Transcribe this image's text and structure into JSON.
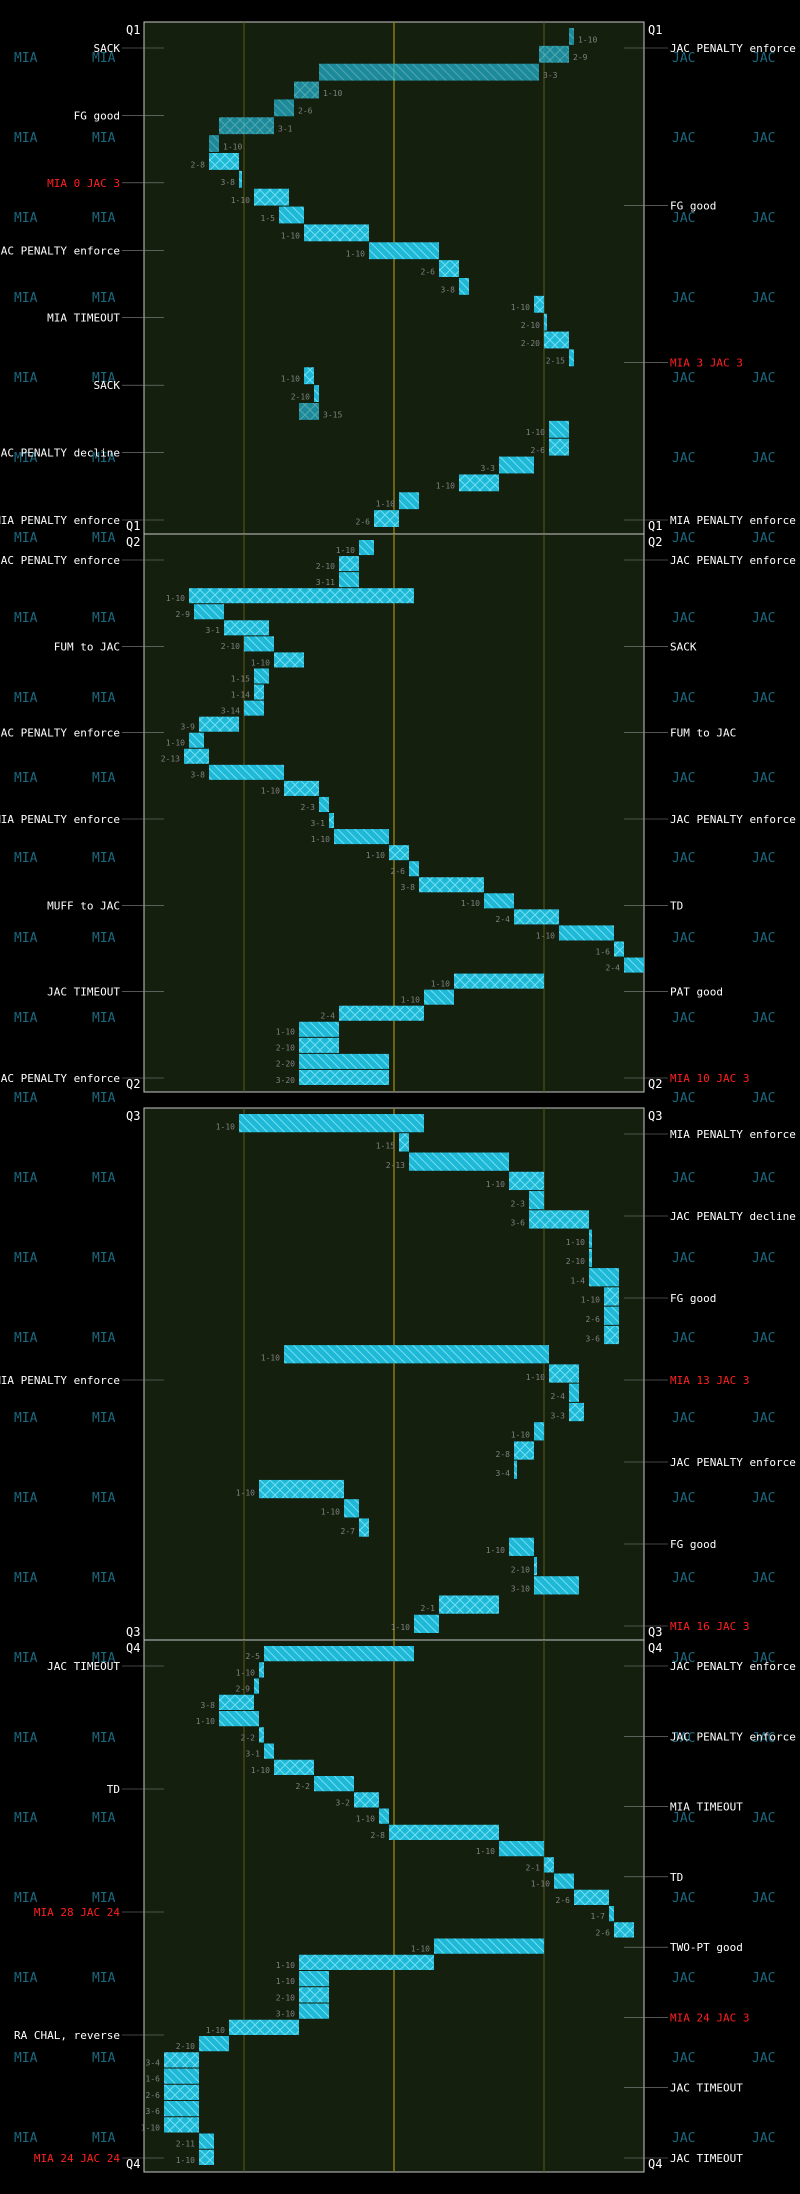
{
  "teams": {
    "left": "MIA",
    "right": "JAC"
  },
  "colors": {
    "background": "#000000",
    "field": "#141f0e",
    "drive": "#1fb8d6",
    "drive_light": "#5fd8ef",
    "endzone_line": "#c8c8c8",
    "midfield": "#8a7a10",
    "score_text": "#ff2020",
    "note_text": "#ffffff",
    "team_watermark": "#1a6a80"
  },
  "chart_data": {
    "type": "drive-chart",
    "title": "",
    "x_axis": "yard line (MIA goal = 0, JAC goal = 100)",
    "xlim": [
      0,
      100
    ],
    "grid_yards": [
      20,
      50,
      80
    ],
    "quarters": [
      {
        "label": "Q1",
        "plays": [
          {
            "down": "1-10",
            "from": 86,
            "to": 85
          },
          {
            "down": "2-9",
            "from": 85,
            "to": 79
          },
          {
            "down": "3-3",
            "from": 79,
            "to": 35
          },
          {
            "down": "1-10",
            "from": 35,
            "to": 30
          },
          {
            "down": "2-6",
            "from": 30,
            "to": 26
          },
          {
            "down": "3-1",
            "from": 26,
            "to": 15
          },
          {
            "down": "1-10",
            "from": 15,
            "to": 13
          },
          {
            "down": "2-8",
            "from": 13,
            "to": 19
          },
          {
            "down": "3-8",
            "from": 19,
            "to": 19
          },
          {
            "down": "1-10",
            "from": 22,
            "to": 29
          },
          {
            "down": "1-5",
            "from": 27,
            "to": 32
          },
          {
            "down": "1-10",
            "from": 32,
            "to": 45
          },
          {
            "down": "1-10",
            "from": 45,
            "to": 59
          },
          {
            "down": "2-6",
            "from": 59,
            "to": 63
          },
          {
            "down": "3-8",
            "from": 63,
            "to": 65
          },
          {
            "down": "1-10",
            "from": 78,
            "to": 80
          },
          {
            "down": "2-10",
            "from": 80,
            "to": 80
          },
          {
            "down": "2-20",
            "from": 80,
            "to": 85
          },
          {
            "down": "2-15",
            "from": 85,
            "to": 86
          },
          {
            "down": "1-10",
            "from": 32,
            "to": 34
          },
          {
            "down": "2-10",
            "from": 34,
            "to": 35
          },
          {
            "down": "3-15",
            "from": 35,
            "to": 31
          },
          {
            "down": "1-10",
            "from": 81,
            "to": 85
          },
          {
            "down": "2-6",
            "from": 81,
            "to": 85
          },
          {
            "down": "3-3",
            "from": 71,
            "to": 78
          },
          {
            "down": "1-10",
            "from": 63,
            "to": 71
          },
          {
            "down": "1-10",
            "from": 51,
            "to": 55
          },
          {
            "down": "2-6",
            "from": 46,
            "to": 51
          }
        ]
      },
      {
        "label": "Q2",
        "plays": [
          {
            "down": "1-10",
            "from": 43,
            "to": 46
          },
          {
            "down": "2-10",
            "from": 39,
            "to": 43
          },
          {
            "down": "3-11",
            "from": 39,
            "to": 43
          },
          {
            "down": "1-10",
            "from": 9,
            "to": 54
          },
          {
            "down": "2-9",
            "from": 10,
            "to": 16
          },
          {
            "down": "3-1",
            "from": 16,
            "to": 25
          },
          {
            "down": "2-10",
            "from": 20,
            "to": 26
          },
          {
            "down": "1-10",
            "from": 26,
            "to": 32
          },
          {
            "down": "1-15",
            "from": 22,
            "to": 25
          },
          {
            "down": "1-14",
            "from": 22,
            "to": 24
          },
          {
            "down": "3-14",
            "from": 20,
            "to": 24
          },
          {
            "down": "3-9",
            "from": 11,
            "to": 19
          },
          {
            "down": "1-10",
            "from": 9,
            "to": 12
          },
          {
            "down": "2-13",
            "from": 8,
            "to": 13
          },
          {
            "down": "3-8",
            "from": 13,
            "to": 28
          },
          {
            "down": "1-10",
            "from": 28,
            "to": 35
          },
          {
            "down": "2-3",
            "from": 35,
            "to": 37
          },
          {
            "down": "3-1",
            "from": 37,
            "to": 38
          },
          {
            "down": "1-10",
            "from": 38,
            "to": 49
          },
          {
            "down": "1-10",
            "from": 49,
            "to": 53
          },
          {
            "down": "2-6",
            "from": 53,
            "to": 55
          },
          {
            "down": "3-8",
            "from": 55,
            "to": 68
          },
          {
            "down": "1-10",
            "from": 68,
            "to": 74
          },
          {
            "down": "2-4",
            "from": 74,
            "to": 83
          },
          {
            "down": "1-10",
            "from": 83,
            "to": 94
          },
          {
            "down": "1-6",
            "from": 94,
            "to": 96
          },
          {
            "down": "2-4",
            "from": 96,
            "to": 100
          },
          {
            "down": "1-10",
            "from": 62,
            "to": 80
          },
          {
            "down": "1-10",
            "from": 56,
            "to": 62
          },
          {
            "down": "2-4",
            "from": 39,
            "to": 56
          },
          {
            "down": "1-10",
            "from": 31,
            "to": 39
          },
          {
            "down": "2-10",
            "from": 31,
            "to": 39
          },
          {
            "down": "2-20",
            "from": 31,
            "to": 49
          },
          {
            "down": "3-20",
            "from": 31,
            "to": 49
          }
        ]
      },
      {
        "label": "Q3",
        "plays": [
          {
            "down": "1-10",
            "from": 19,
            "to": 56
          },
          {
            "down": "1-15",
            "from": 51,
            "to": 53
          },
          {
            "down": "2-13",
            "from": 53,
            "to": 73
          },
          {
            "down": "1-10",
            "from": 73,
            "to": 80
          },
          {
            "down": "2-3",
            "from": 77,
            "to": 80
          },
          {
            "down": "3-6",
            "from": 77,
            "to": 89
          },
          {
            "down": "1-10",
            "from": 89,
            "to": 89
          },
          {
            "down": "2-10",
            "from": 89,
            "to": 89
          },
          {
            "down": "1-4",
            "from": 89,
            "to": 95
          },
          {
            "down": "1-10",
            "from": 92,
            "to": 95
          },
          {
            "down": "2-6",
            "from": 92,
            "to": 95
          },
          {
            "down": "3-6",
            "from": 92,
            "to": 95
          },
          {
            "down": "1-10",
            "from": 28,
            "to": 81
          },
          {
            "down": "1-10",
            "from": 81,
            "to": 87
          },
          {
            "down": "2-4",
            "from": 85,
            "to": 87
          },
          {
            "down": "3-3",
            "from": 85,
            "to": 88
          },
          {
            "down": "1-10",
            "from": 78,
            "to": 80
          },
          {
            "down": "2-8",
            "from": 74,
            "to": 78
          },
          {
            "down": "3-4",
            "from": 74,
            "to": 74
          },
          {
            "down": "1-10",
            "from": 23,
            "to": 40
          },
          {
            "down": "1-10",
            "from": 40,
            "to": 43
          },
          {
            "down": "2-7",
            "from": 43,
            "to": 45
          },
          {
            "down": "1-10",
            "from": 73,
            "to": 78
          },
          {
            "down": "2-10",
            "from": 78,
            "to": 78
          },
          {
            "down": "3-10",
            "from": 78,
            "to": 87
          },
          {
            "down": "2-1",
            "from": 59,
            "to": 71
          },
          {
            "down": "1-10",
            "from": 54,
            "to": 59
          }
        ]
      },
      {
        "label": "Q4",
        "plays": [
          {
            "down": "2-5",
            "from": 24,
            "to": 54
          },
          {
            "down": "1-10",
            "from": 23,
            "to": 24
          },
          {
            "down": "2-9",
            "from": 22,
            "to": 23
          },
          {
            "down": "3-8",
            "from": 15,
            "to": 22
          },
          {
            "down": "1-10",
            "from": 15,
            "to": 23
          },
          {
            "down": "2-2",
            "from": 23,
            "to": 24
          },
          {
            "down": "3-1",
            "from": 24,
            "to": 26
          },
          {
            "down": "1-10",
            "from": 26,
            "to": 34
          },
          {
            "down": "2-2",
            "from": 34,
            "to": 42
          },
          {
            "down": "3-2",
            "from": 42,
            "to": 47
          },
          {
            "down": "1-10",
            "from": 47,
            "to": 49
          },
          {
            "down": "2-8",
            "from": 49,
            "to": 71
          },
          {
            "down": "1-10",
            "from": 71,
            "to": 80
          },
          {
            "down": "2-1",
            "from": 80,
            "to": 82
          },
          {
            "down": "1-10",
            "from": 82,
            "to": 86
          },
          {
            "down": "2-6",
            "from": 86,
            "to": 93
          },
          {
            "down": "1-7",
            "from": 93,
            "to": 94
          },
          {
            "down": "2-6",
            "from": 94,
            "to": 98
          },
          {
            "down": "1-10",
            "from": 58,
            "to": 80
          },
          {
            "down": "1-10",
            "from": 31,
            "to": 58
          },
          {
            "down": "1-10",
            "from": 31,
            "to": 37
          },
          {
            "down": "2-10",
            "from": 31,
            "to": 37
          },
          {
            "down": "3-10",
            "from": 31,
            "to": 37
          },
          {
            "down": "1-10",
            "from": 17,
            "to": 31
          },
          {
            "down": "2-10",
            "from": 11,
            "to": 17
          },
          {
            "down": "3-4",
            "from": 4,
            "to": 11
          },
          {
            "down": "1-6",
            "from": 4,
            "to": 11
          },
          {
            "down": "2-6",
            "from": 4,
            "to": 11
          },
          {
            "down": "3-6",
            "from": 4,
            "to": 11
          },
          {
            "down": "1-10",
            "from": 4,
            "to": 11
          },
          {
            "down": "2-11",
            "from": 11,
            "to": 14
          },
          {
            "down": "1-10",
            "from": 11,
            "to": 14
          }
        ]
      }
    ],
    "annotations": {
      "left": [
        {
          "text": "SACK",
          "quarter": 1
        },
        {
          "text": "FG good",
          "quarter": 1
        },
        {
          "text": "MIA 0 JAC 3",
          "quarter": 1,
          "score": true
        },
        {
          "text": "JAC PENALTY enforce",
          "quarter": 1
        },
        {
          "text": "MIA TIMEOUT",
          "quarter": 1
        },
        {
          "text": "SACK",
          "quarter": 1
        },
        {
          "text": "JAC PENALTY decline",
          "quarter": 1
        },
        {
          "text": "MIA PENALTY enforce",
          "quarter": 1
        },
        {
          "text": "JAC PENALTY enforce",
          "quarter": 2
        },
        {
          "text": "FUM to JAC",
          "quarter": 2
        },
        {
          "text": "JAC PENALTY enforce",
          "quarter": 2
        },
        {
          "text": "MIA PENALTY enforce",
          "quarter": 2
        },
        {
          "text": "MUFF to JAC",
          "quarter": 2
        },
        {
          "text": "JAC TIMEOUT",
          "quarter": 2
        },
        {
          "text": "JAC PENALTY enforce",
          "quarter": 2
        },
        {
          "text": "MIA PENALTY enforce",
          "quarter": 3
        },
        {
          "text": "JAC TIMEOUT",
          "quarter": 4
        },
        {
          "text": "TD",
          "quarter": 4
        },
        {
          "text": "MIA 28 JAC 24",
          "quarter": 4,
          "score": true
        },
        {
          "text": "RA CHAL, reverse",
          "quarter": 4
        },
        {
          "text": "MIA 24 JAC 24",
          "quarter": 4,
          "score": true
        }
      ],
      "right": [
        {
          "text": "JAC PENALTY enforce",
          "quarter": 1
        },
        {
          "text": "FG good",
          "quarter": 1
        },
        {
          "text": "MIA 3 JAC 3",
          "quarter": 1,
          "score": true
        },
        {
          "text": "MIA PENALTY enforce",
          "quarter": 1
        },
        {
          "text": "JAC PENALTY enforce",
          "quarter": 2
        },
        {
          "text": "SACK",
          "quarter": 2
        },
        {
          "text": "FUM to JAC",
          "quarter": 2
        },
        {
          "text": "JAC PENALTY enforce",
          "quarter": 2
        },
        {
          "text": "TD",
          "quarter": 2
        },
        {
          "text": "PAT good",
          "quarter": 2
        },
        {
          "text": "MIA 10 JAC 3",
          "quarter": 2,
          "score": true
        },
        {
          "text": "MIA PENALTY enforce",
          "quarter": 3
        },
        {
          "text": "JAC PENALTY decline",
          "quarter": 3
        },
        {
          "text": "FG good",
          "quarter": 3
        },
        {
          "text": "MIA 13 JAC 3",
          "quarter": 3,
          "score": true
        },
        {
          "text": "JAC PENALTY enforce",
          "quarter": 3
        },
        {
          "text": "FG good",
          "quarter": 3
        },
        {
          "text": "MIA 16 JAC 3",
          "quarter": 3,
          "score": true
        },
        {
          "text": "JAC PENALTY enforce",
          "quarter": 4
        },
        {
          "text": "JAC PENALTY enforce",
          "quarter": 4
        },
        {
          "text": "MIA TIMEOUT",
          "quarter": 4
        },
        {
          "text": "TD",
          "quarter": 4
        },
        {
          "text": "TWO-PT good",
          "quarter": 4
        },
        {
          "text": "MIA 24 JAC 3",
          "quarter": 4,
          "score": true
        },
        {
          "text": "JAC TIMEOUT",
          "quarter": 4
        },
        {
          "text": "JAC TIMEOUT",
          "quarter": 4
        }
      ]
    }
  }
}
